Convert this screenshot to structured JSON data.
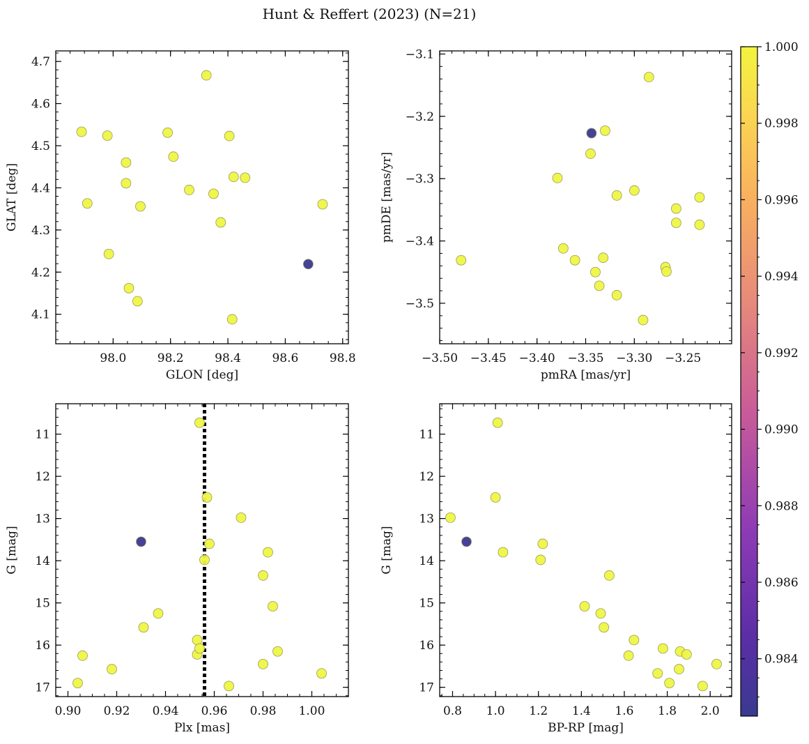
{
  "figure": {
    "title": "Hunt & Reffert (2023) (N=21)"
  },
  "chart_data": [
    {
      "type": "scatter",
      "panel": "top-left",
      "xlabel": "GLON [deg]",
      "ylabel": "GLAT [deg]",
      "xlim": [
        97.8,
        98.82
      ],
      "ylim": [
        4.03,
        4.725
      ],
      "xticks": [
        98.0,
        98.2,
        98.4,
        98.6,
        98.8
      ],
      "xtick_labels": [
        "98.0",
        "98.2",
        "98.4",
        "98.6",
        "98.8"
      ],
      "yticks": [
        4.1,
        4.2,
        4.3,
        4.4,
        4.5,
        4.6,
        4.7
      ],
      "ytick_labels": [
        "4.1",
        "4.2",
        "4.3",
        "4.4",
        "4.5",
        "4.6",
        "4.7"
      ],
      "y_inverted": false,
      "points": [
        {
          "x": 97.89,
          "y": 4.533,
          "c": 1.0
        },
        {
          "x": 97.91,
          "y": 4.363,
          "c": 1.0
        },
        {
          "x": 97.98,
          "y": 4.524,
          "c": 1.0
        },
        {
          "x": 97.985,
          "y": 4.243,
          "c": 1.0
        },
        {
          "x": 98.045,
          "y": 4.46,
          "c": 1.0
        },
        {
          "x": 98.045,
          "y": 4.411,
          "c": 1.0
        },
        {
          "x": 98.055,
          "y": 4.162,
          "c": 1.0
        },
        {
          "x": 98.085,
          "y": 4.131,
          "c": 1.0
        },
        {
          "x": 98.095,
          "y": 4.356,
          "c": 1.0
        },
        {
          "x": 98.19,
          "y": 4.531,
          "c": 1.0
        },
        {
          "x": 98.21,
          "y": 4.474,
          "c": 1.0
        },
        {
          "x": 98.265,
          "y": 4.395,
          "c": 1.0
        },
        {
          "x": 98.325,
          "y": 4.667,
          "c": 1.0
        },
        {
          "x": 98.35,
          "y": 4.386,
          "c": 1.0
        },
        {
          "x": 98.375,
          "y": 4.318,
          "c": 1.0
        },
        {
          "x": 98.405,
          "y": 4.523,
          "c": 1.0
        },
        {
          "x": 98.42,
          "y": 4.426,
          "c": 1.0
        },
        {
          "x": 98.415,
          "y": 4.088,
          "c": 1.0
        },
        {
          "x": 98.46,
          "y": 4.424,
          "c": 1.0
        },
        {
          "x": 98.68,
          "y": 4.219,
          "c": 0.9825
        },
        {
          "x": 98.73,
          "y": 4.361,
          "c": 1.0
        }
      ]
    },
    {
      "type": "scatter",
      "panel": "top-right",
      "xlabel": "pmRA [mas/yr]",
      "ylabel": "pmDE [mas/yr]",
      "xlim": [
        -3.5,
        -3.2
      ],
      "ylim": [
        -3.565,
        -3.095
      ],
      "xticks": [
        -3.5,
        -3.45,
        -3.4,
        -3.35,
        -3.3,
        -3.25
      ],
      "xtick_labels": [
        "−3.50",
        "−3.45",
        "−3.40",
        "−3.35",
        "−3.30",
        "−3.25"
      ],
      "yticks": [
        -3.5,
        -3.4,
        -3.3,
        -3.2,
        -3.1
      ],
      "ytick_labels": [
        "−3.5",
        "−3.4",
        "−3.3",
        "−3.2",
        "−3.1"
      ],
      "y_inverted": false,
      "points": [
        {
          "x": -3.478,
          "y": -3.431,
          "c": 1.0
        },
        {
          "x": -3.379,
          "y": -3.299,
          "c": 1.0
        },
        {
          "x": -3.373,
          "y": -3.412,
          "c": 1.0
        },
        {
          "x": -3.361,
          "y": -3.431,
          "c": 1.0
        },
        {
          "x": -3.345,
          "y": -3.26,
          "c": 1.0
        },
        {
          "x": -3.344,
          "y": -3.227,
          "c": 0.9825
        },
        {
          "x": -3.34,
          "y": -3.45,
          "c": 1.0
        },
        {
          "x": -3.336,
          "y": -3.472,
          "c": 1.0
        },
        {
          "x": -3.332,
          "y": -3.427,
          "c": 1.0
        },
        {
          "x": -3.33,
          "y": -3.223,
          "c": 1.0
        },
        {
          "x": -3.318,
          "y": -3.327,
          "c": 1.0
        },
        {
          "x": -3.318,
          "y": -3.487,
          "c": 1.0
        },
        {
          "x": -3.3,
          "y": -3.319,
          "c": 1.0
        },
        {
          "x": -3.291,
          "y": -3.527,
          "c": 1.0
        },
        {
          "x": -3.285,
          "y": -3.137,
          "c": 1.0
        },
        {
          "x": -3.268,
          "y": -3.442,
          "c": 1.0
        },
        {
          "x": -3.267,
          "y": -3.449,
          "c": 1.0
        },
        {
          "x": -3.257,
          "y": -3.348,
          "c": 1.0
        },
        {
          "x": -3.257,
          "y": -3.371,
          "c": 1.0
        },
        {
          "x": -3.233,
          "y": -3.33,
          "c": 1.0
        },
        {
          "x": -3.233,
          "y": -3.374,
          "c": 1.0
        }
      ]
    },
    {
      "type": "scatter",
      "panel": "bottom-left",
      "xlabel": "Plx [mas]",
      "ylabel": "G [mag]",
      "xlim": [
        0.895,
        1.015
      ],
      "ylim": [
        17.22,
        10.28
      ],
      "xticks": [
        0.9,
        0.92,
        0.94,
        0.96,
        0.98,
        1.0
      ],
      "xtick_labels": [
        "0.90",
        "0.92",
        "0.94",
        "0.96",
        "0.98",
        "1.00"
      ],
      "yticks": [
        11,
        12,
        13,
        14,
        15,
        16,
        17
      ],
      "ytick_labels": [
        "11",
        "12",
        "13",
        "14",
        "15",
        "16",
        "17"
      ],
      "y_inverted": true,
      "vline": 0.956,
      "points": [
        {
          "x": 0.904,
          "y": 16.9,
          "c": 1.0
        },
        {
          "x": 0.906,
          "y": 16.25,
          "c": 1.0
        },
        {
          "x": 0.918,
          "y": 16.57,
          "c": 1.0
        },
        {
          "x": 0.93,
          "y": 13.55,
          "c": 0.9825
        },
        {
          "x": 0.931,
          "y": 15.58,
          "c": 1.0
        },
        {
          "x": 0.937,
          "y": 15.25,
          "c": 1.0
        },
        {
          "x": 0.953,
          "y": 15.88,
          "c": 1.0
        },
        {
          "x": 0.953,
          "y": 16.22,
          "c": 1.0
        },
        {
          "x": 0.954,
          "y": 16.08,
          "c": 1.0
        },
        {
          "x": 0.954,
          "y": 10.73,
          "c": 1.0
        },
        {
          "x": 0.956,
          "y": 13.98,
          "c": 1.0
        },
        {
          "x": 0.957,
          "y": 12.5,
          "c": 1.0
        },
        {
          "x": 0.958,
          "y": 13.6,
          "c": 1.0
        },
        {
          "x": 0.966,
          "y": 16.97,
          "c": 1.0
        },
        {
          "x": 0.971,
          "y": 12.98,
          "c": 1.0
        },
        {
          "x": 0.98,
          "y": 14.35,
          "c": 1.0
        },
        {
          "x": 0.98,
          "y": 16.45,
          "c": 1.0
        },
        {
          "x": 0.982,
          "y": 13.8,
          "c": 1.0
        },
        {
          "x": 0.984,
          "y": 15.08,
          "c": 1.0
        },
        {
          "x": 0.986,
          "y": 16.15,
          "c": 1.0
        },
        {
          "x": 1.004,
          "y": 16.67,
          "c": 1.0
        }
      ]
    },
    {
      "type": "scatter",
      "panel": "bottom-right",
      "xlabel": "BP-RP [mag]",
      "ylabel": "G [mag]",
      "xlim": [
        0.74,
        2.1
      ],
      "ylim": [
        17.22,
        10.28
      ],
      "xticks": [
        0.8,
        1.0,
        1.2,
        1.4,
        1.6,
        1.8,
        2.0
      ],
      "xtick_labels": [
        "0.8",
        "1.0",
        "1.2",
        "1.4",
        "1.6",
        "1.8",
        "2.0"
      ],
      "yticks": [
        11,
        12,
        13,
        14,
        15,
        16,
        17
      ],
      "ytick_labels": [
        "11",
        "12",
        "13",
        "14",
        "15",
        "16",
        "17"
      ],
      "y_inverted": true,
      "points": [
        {
          "x": 0.79,
          "y": 12.98,
          "c": 1.0
        },
        {
          "x": 0.865,
          "y": 13.55,
          "c": 0.9825
        },
        {
          "x": 1.0,
          "y": 12.5,
          "c": 1.0
        },
        {
          "x": 1.01,
          "y": 10.73,
          "c": 1.0
        },
        {
          "x": 1.035,
          "y": 13.8,
          "c": 1.0
        },
        {
          "x": 1.21,
          "y": 13.98,
          "c": 1.0
        },
        {
          "x": 1.22,
          "y": 13.6,
          "c": 1.0
        },
        {
          "x": 1.415,
          "y": 15.08,
          "c": 1.0
        },
        {
          "x": 1.49,
          "y": 15.25,
          "c": 1.0
        },
        {
          "x": 1.505,
          "y": 15.58,
          "c": 1.0
        },
        {
          "x": 1.53,
          "y": 14.35,
          "c": 1.0
        },
        {
          "x": 1.62,
          "y": 16.25,
          "c": 1.0
        },
        {
          "x": 1.645,
          "y": 15.88,
          "c": 1.0
        },
        {
          "x": 1.755,
          "y": 16.67,
          "c": 1.0
        },
        {
          "x": 1.78,
          "y": 16.08,
          "c": 1.0
        },
        {
          "x": 1.81,
          "y": 16.9,
          "c": 1.0
        },
        {
          "x": 1.855,
          "y": 16.57,
          "c": 1.0
        },
        {
          "x": 1.86,
          "y": 16.15,
          "c": 1.0
        },
        {
          "x": 1.89,
          "y": 16.22,
          "c": 1.0
        },
        {
          "x": 1.965,
          "y": 16.97,
          "c": 1.0
        },
        {
          "x": 2.03,
          "y": 16.45,
          "c": 1.0
        }
      ]
    }
  ],
  "colorbar": {
    "min": 0.9825,
    "max": 1.0,
    "ticks": [
      0.984,
      0.986,
      0.988,
      0.99,
      0.992,
      0.994,
      0.996,
      0.998,
      1.0
    ],
    "tick_labels": [
      "0.984",
      "0.986",
      "0.988",
      "0.990",
      "0.992",
      "0.994",
      "0.996",
      "0.998",
      "1.000"
    ],
    "colormap": "plasma",
    "low_color": "#3a3a8f",
    "high_color": "#f0f040"
  },
  "colors": {
    "high_point": "#eef545",
    "low_point": "#3b3893",
    "point_edge": "#9a9a5a",
    "vline": "#000000"
  }
}
